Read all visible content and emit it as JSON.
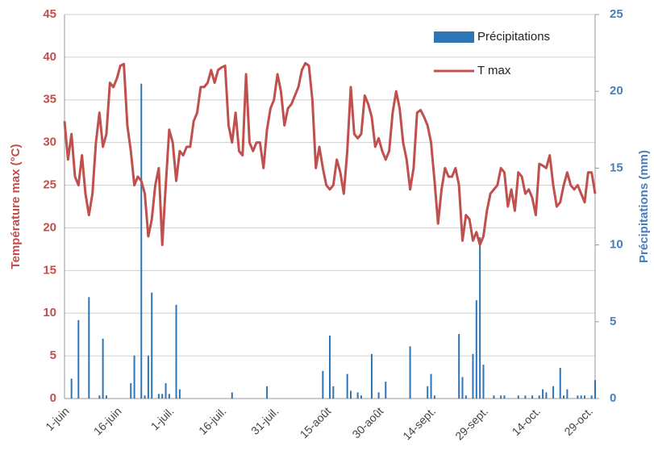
{
  "chart_data": {
    "type": "combo",
    "ylabel": "Température max (°C)",
    "y2label": "Précipitations (mm)",
    "ylim": [
      0,
      45
    ],
    "yticks": [
      0,
      5,
      10,
      15,
      20,
      25,
      30,
      35,
      40,
      45
    ],
    "y2lim": [
      0,
      25
    ],
    "y2ticks": [
      0,
      5,
      10,
      15,
      20,
      25
    ],
    "grid": true,
    "legend": "upper right",
    "categories": [
      "1-juin",
      null,
      null,
      null,
      null,
      null,
      null,
      null,
      null,
      null,
      null,
      null,
      null,
      null,
      null,
      "16-juin",
      null,
      null,
      null,
      null,
      null,
      null,
      null,
      null,
      null,
      null,
      null,
      null,
      null,
      null,
      "1-juil.",
      null,
      null,
      null,
      null,
      null,
      null,
      null,
      null,
      null,
      null,
      null,
      null,
      null,
      null,
      "16-juil.",
      null,
      null,
      null,
      null,
      null,
      null,
      null,
      null,
      null,
      null,
      null,
      null,
      null,
      null,
      "31-juil.",
      null,
      null,
      null,
      null,
      null,
      null,
      null,
      null,
      null,
      null,
      null,
      null,
      null,
      null,
      "15-août",
      null,
      null,
      null,
      null,
      null,
      null,
      null,
      null,
      null,
      null,
      null,
      null,
      null,
      null,
      "30-août",
      null,
      null,
      null,
      null,
      null,
      null,
      null,
      null,
      null,
      null,
      null,
      null,
      null,
      null,
      "14-sept.",
      null,
      null,
      null,
      null,
      null,
      null,
      null,
      null,
      null,
      null,
      null,
      null,
      null,
      null,
      "29-sept.",
      null,
      null,
      null,
      null,
      null,
      null,
      null,
      null,
      null,
      null,
      null,
      null,
      null,
      null,
      "14-oct.",
      null,
      null,
      null,
      null,
      null,
      null,
      null,
      null,
      null,
      null,
      null,
      null,
      null,
      null,
      "29-oct.",
      null,
      null
    ],
    "series": [
      {
        "name": "Précipitations",
        "type": "bar",
        "axis": "y2",
        "color": "#2e75b6",
        "values": [
          0,
          0,
          1.3,
          0,
          5.1,
          0,
          0,
          6.6,
          0,
          0,
          0.2,
          3.9,
          0.2,
          0,
          0,
          0,
          0,
          0,
          0,
          1.0,
          2.8,
          0,
          20.5,
          0.2,
          2.8,
          6.9,
          0,
          0.3,
          0.3,
          1.0,
          0.3,
          0,
          6.1,
          0.6,
          0,
          0,
          0,
          0,
          0,
          0,
          0,
          0,
          0,
          0,
          0,
          0,
          0,
          0,
          0.4,
          0,
          0,
          0,
          0,
          0,
          0,
          0,
          0,
          0,
          0.8,
          0,
          0,
          0,
          0,
          0,
          0,
          0,
          0,
          0,
          0,
          0,
          0,
          0,
          0,
          0,
          1.8,
          0,
          4.1,
          0.8,
          0,
          0,
          0,
          1.6,
          0.5,
          0,
          0.4,
          0.2,
          0,
          0,
          2.9,
          0,
          0.4,
          0,
          1.1,
          0,
          0,
          0,
          0,
          0,
          0,
          3.4,
          0,
          0,
          0,
          0,
          0.8,
          1.6,
          0.2,
          0,
          0,
          0,
          0,
          0,
          0,
          4.2,
          1.4,
          0.2,
          0,
          2.9,
          6.4,
          10.5,
          2.2,
          0,
          0,
          0.2,
          0,
          0.2,
          0.2,
          0,
          0,
          0,
          0.2,
          0,
          0.2,
          0,
          0.2,
          0,
          0.2,
          0.6,
          0.4,
          0,
          0.8,
          0,
          2.0,
          0.2,
          0.6,
          0,
          0,
          0.2,
          0.2,
          0.2,
          0,
          0.2,
          1.2
        ]
      },
      {
        "name": "T max",
        "type": "line",
        "color": "#c0504d",
        "values": [
          32.5,
          28,
          31,
          26,
          25,
          28.5,
          24,
          21.5,
          24,
          30,
          33.5,
          29.5,
          31,
          37,
          36.5,
          37.5,
          39,
          39.2,
          32,
          29,
          25,
          26,
          25.5,
          24,
          19,
          21,
          25,
          27,
          18,
          25,
          31.5,
          30,
          25.5,
          29,
          28.5,
          29.5,
          29.5,
          32.5,
          33.5,
          36.5,
          36.5,
          37,
          38.5,
          37,
          38.5,
          38.8,
          39,
          32,
          30,
          33.5,
          29,
          28.5,
          38,
          30,
          29,
          30,
          30,
          27,
          31.5,
          34,
          35,
          38,
          36,
          32,
          34,
          34.5,
          35.5,
          36.5,
          38.5,
          39.3,
          39,
          35,
          27,
          29.5,
          27,
          25,
          24.5,
          25,
          28,
          26.5,
          24,
          29,
          36.5,
          31,
          30.5,
          31,
          35.5,
          34.5,
          33,
          29.5,
          30.5,
          29,
          28,
          29,
          33.5,
          36,
          34,
          30,
          28,
          24.5,
          27,
          33.5,
          33.8,
          33,
          32,
          30,
          25.5,
          20.5,
          24.5,
          27,
          26,
          26,
          27,
          25,
          18.5,
          21.5,
          21,
          18.5,
          19.5,
          18,
          19,
          22,
          24,
          24.5,
          25,
          27,
          26.5,
          22.5,
          24.5,
          22,
          26.5,
          26,
          24,
          24.5,
          23.5,
          21.5,
          27.5,
          27.3,
          27,
          28.5,
          25,
          22.5,
          23,
          25,
          26.5,
          25,
          24.5,
          25,
          24,
          23,
          26.5,
          26.5,
          24
        ]
      }
    ]
  }
}
